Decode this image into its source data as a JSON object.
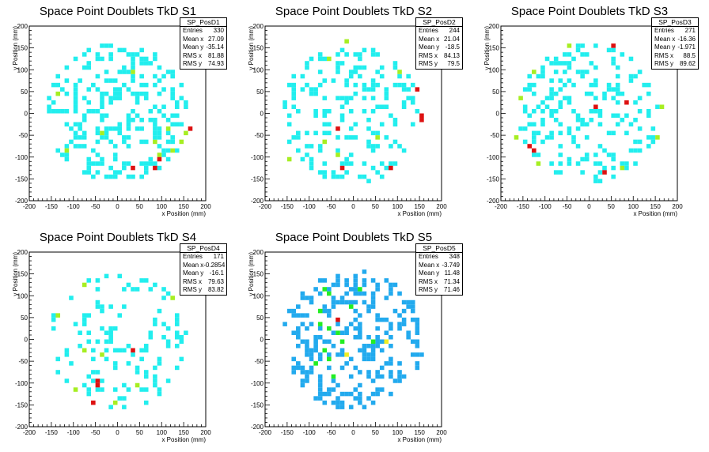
{
  "palette": {
    "cyan": "#22eeee",
    "green": "#a6ee22",
    "red": "#dd1111",
    "blue": "#22aaee",
    "bright_green": "#22ee22",
    "yellow": "#eeee22"
  },
  "chart_data": [
    {
      "type": "heatmap",
      "title": "Space Point Doublets TkD S1",
      "xlabel": "x Position (mm)",
      "ylabel": "y Position (mm)",
      "xlim": [
        -200,
        200
      ],
      "ylim": [
        -200,
        200
      ],
      "xticks": [
        -200,
        -150,
        -100,
        -50,
        0,
        50,
        100,
        150,
        200
      ],
      "yticks": [
        -200,
        -150,
        -100,
        -50,
        0,
        50,
        100,
        150,
        200
      ],
      "stats": {
        "name": "SP_PosD1",
        "entries": "330",
        "mean_x": "27.09",
        "mean_y": "-35.14",
        "rms_x": "81.88",
        "rms_y": "74.93"
      },
      "labels": {
        "entries": "Entries",
        "mean_x": "Mean x",
        "mean_y": "Mean y",
        "rms_x": "RMS x",
        "rms_y": "RMS y"
      },
      "seed": 11,
      "n_points": 330,
      "radius": 160,
      "bias": [
        0.3,
        -0.3
      ],
      "highlights": [
        {
          "x": 160,
          "y": -35,
          "level": "red"
        },
        {
          "x": 30,
          "y": -130,
          "level": "red"
        },
        {
          "x": 80,
          "y": -125,
          "level": "red"
        },
        {
          "x": 95,
          "y": -110,
          "level": "red"
        },
        {
          "x": 155,
          "y": -45,
          "level": "green"
        },
        {
          "x": 140,
          "y": -65,
          "level": "green"
        },
        {
          "x": 110,
          "y": -40,
          "level": "green"
        },
        {
          "x": -40,
          "y": -45,
          "level": "green"
        },
        {
          "x": -120,
          "y": -85,
          "level": "green"
        },
        {
          "x": 80,
          "y": -70,
          "level": "green"
        },
        {
          "x": 35,
          "y": 95,
          "level": "green"
        },
        {
          "x": -140,
          "y": 40,
          "level": "green"
        },
        {
          "x": 90,
          "y": -100,
          "level": "green"
        },
        {
          "x": 120,
          "y": -90,
          "level": "green"
        }
      ]
    },
    {
      "type": "heatmap",
      "title": "Space Point Doublets TkD S2",
      "xlabel": "x Position (mm)",
      "ylabel": "y Position (mm)",
      "xlim": [
        -200,
        200
      ],
      "ylim": [
        -200,
        200
      ],
      "xticks": [
        -200,
        -150,
        -100,
        -50,
        0,
        50,
        100,
        150,
        200
      ],
      "yticks": [
        -200,
        -150,
        -100,
        -50,
        0,
        50,
        100,
        150,
        200
      ],
      "stats": {
        "name": "SP_PosD2",
        "entries": "244",
        "mean_x": "21.04",
        "mean_y": "-18.5",
        "rms_x": "84.13",
        "rms_y": "79.5"
      },
      "labels": {
        "entries": "Entries",
        "mean_x": "Mean x",
        "mean_y": "Mean y",
        "rms_x": "RMS x",
        "rms_y": "RMS y"
      },
      "seed": 23,
      "n_points": 244,
      "radius": 160,
      "bias": [
        0.2,
        -0.1
      ],
      "highlights": [
        {
          "x": 155,
          "y": -5,
          "level": "red"
        },
        {
          "x": 155,
          "y": -15,
          "level": "red"
        },
        {
          "x": 140,
          "y": 55,
          "level": "red"
        },
        {
          "x": -35,
          "y": -35,
          "level": "red"
        },
        {
          "x": -25,
          "y": -130,
          "level": "red"
        },
        {
          "x": 85,
          "y": -130,
          "level": "red"
        },
        {
          "x": -20,
          "y": 160,
          "level": "green"
        },
        {
          "x": -55,
          "y": 120,
          "level": "green"
        },
        {
          "x": 100,
          "y": 90,
          "level": "green"
        },
        {
          "x": -65,
          "y": -65,
          "level": "green"
        },
        {
          "x": -40,
          "y": -95,
          "level": "green"
        },
        {
          "x": -145,
          "y": -105,
          "level": "green"
        },
        {
          "x": 50,
          "y": -55,
          "level": "green"
        }
      ]
    },
    {
      "type": "heatmap",
      "title": "Space Point Doublets TkD S3",
      "xlabel": "x Position (mm)",
      "ylabel": "y Position (mm)",
      "xlim": [
        -200,
        200
      ],
      "ylim": [
        -200,
        200
      ],
      "xticks": [
        -200,
        -150,
        -100,
        -50,
        0,
        50,
        100,
        150,
        200
      ],
      "yticks": [
        -200,
        -150,
        -100,
        -50,
        0,
        50,
        100,
        150,
        200
      ],
      "stats": {
        "name": "SP_PosD3",
        "entries": "271",
        "mean_x": "-16.36",
        "mean_y": "-1.971",
        "rms_x": "88.5",
        "rms_y": "89.62"
      },
      "labels": {
        "entries": "Entries",
        "mean_x": "Mean x",
        "mean_y": "Mean y",
        "rms_x": "RMS x",
        "rms_y": "RMS y"
      },
      "seed": 37,
      "n_points": 271,
      "radius": 160,
      "bias": [
        -0.15,
        0
      ],
      "highlights": [
        {
          "x": 85,
          "y": 25,
          "level": "red"
        },
        {
          "x": 55,
          "y": 150,
          "level": "red"
        },
        {
          "x": -130,
          "y": -85,
          "level": "red"
        },
        {
          "x": -135,
          "y": -80,
          "level": "red"
        },
        {
          "x": 30,
          "y": -140,
          "level": "red"
        },
        {
          "x": 15,
          "y": 10,
          "level": "red"
        },
        {
          "x": -50,
          "y": 150,
          "level": "green"
        },
        {
          "x": -125,
          "y": 90,
          "level": "green"
        },
        {
          "x": -160,
          "y": 35,
          "level": "green"
        },
        {
          "x": -170,
          "y": -60,
          "level": "green"
        },
        {
          "x": 155,
          "y": -55,
          "level": "green"
        },
        {
          "x": 165,
          "y": 15,
          "level": "green"
        },
        {
          "x": -120,
          "y": -120,
          "level": "green"
        },
        {
          "x": 75,
          "y": -125,
          "level": "green"
        }
      ]
    },
    {
      "type": "heatmap",
      "title": "Space Point Doublets TkD S4",
      "xlabel": "x Position (mm)",
      "ylabel": "y Position (mm)",
      "xlim": [
        -200,
        200
      ],
      "ylim": [
        -200,
        200
      ],
      "xticks": [
        -200,
        -150,
        -100,
        -50,
        0,
        50,
        100,
        150,
        200
      ],
      "yticks": [
        -200,
        -150,
        -100,
        -50,
        0,
        50,
        100,
        150,
        200
      ],
      "stats": {
        "name": "SP_PosD4",
        "entries": "171",
        "mean_x": "-0.2854",
        "mean_y": "-16.1",
        "rms_x": "79.63",
        "rms_y": "83.82"
      },
      "labels": {
        "entries": "Entries",
        "mean_x": "Mean x",
        "mean_y": "Mean y",
        "rms_x": "RMS x",
        "rms_y": "RMS y"
      },
      "seed": 51,
      "n_points": 171,
      "radius": 160,
      "bias": [
        0,
        -0.1
      ],
      "highlights": [
        {
          "x": -45,
          "y": -100,
          "level": "red"
        },
        {
          "x": 35,
          "y": -25,
          "level": "red"
        },
        {
          "x": -55,
          "y": -145,
          "level": "red"
        },
        {
          "x": -50,
          "y": -105,
          "level": "red"
        },
        {
          "x": -75,
          "y": 125,
          "level": "green"
        },
        {
          "x": 125,
          "y": 95,
          "level": "green"
        },
        {
          "x": -135,
          "y": 55,
          "level": "green"
        },
        {
          "x": -40,
          "y": -40,
          "level": "green"
        },
        {
          "x": -5,
          "y": -150,
          "level": "green"
        },
        {
          "x": -75,
          "y": -30,
          "level": "green"
        },
        {
          "x": -100,
          "y": -115,
          "level": "green"
        },
        {
          "x": 45,
          "y": -105,
          "level": "green"
        }
      ]
    },
    {
      "type": "heatmap",
      "title": "Space Point Doublets TkD S5",
      "xlabel": "x Position (mm)",
      "ylabel": "y Position (mm)",
      "xlim": [
        -200,
        200
      ],
      "ylim": [
        -200,
        200
      ],
      "xticks": [
        -200,
        -150,
        -100,
        -50,
        0,
        50,
        100,
        150,
        200
      ],
      "yticks": [
        -200,
        -150,
        -100,
        -50,
        0,
        50,
        100,
        150,
        200
      ],
      "stats": {
        "name": "SP_PosD5",
        "entries": "348",
        "mean_x": "-3.749",
        "mean_y": "11.48",
        "rms_x": "71.34",
        "rms_y": "71.46"
      },
      "labels": {
        "entries": "Entries",
        "mean_x": "Mean x",
        "mean_y": "Mean y",
        "rms_x": "RMS x",
        "rms_y": "RMS y"
      },
      "seed": 67,
      "n_points": 348,
      "radius": 160,
      "bias": [
        0,
        0.1
      ],
      "base_level": "blue",
      "highlights": [
        {
          "x": -40,
          "y": 40,
          "level": "red"
        },
        {
          "x": -70,
          "y": -25,
          "level": "bright_green"
        },
        {
          "x": -80,
          "y": 30,
          "level": "bright_green"
        },
        {
          "x": -55,
          "y": 20,
          "level": "bright_green"
        },
        {
          "x": -40,
          "y": 10,
          "level": "bright_green"
        },
        {
          "x": -30,
          "y": -10,
          "level": "bright_green"
        },
        {
          "x": -60,
          "y": -50,
          "level": "bright_green"
        },
        {
          "x": -85,
          "y": -55,
          "level": "bright_green"
        },
        {
          "x": -80,
          "y": 65,
          "level": "bright_green"
        },
        {
          "x": -10,
          "y": 75,
          "level": "bright_green"
        },
        {
          "x": 15,
          "y": 115,
          "level": "bright_green"
        },
        {
          "x": -55,
          "y": 100,
          "level": "bright_green"
        },
        {
          "x": 45,
          "y": -10,
          "level": "bright_green"
        },
        {
          "x": 70,
          "y": -10,
          "level": "yellow"
        },
        {
          "x": -20,
          "y": -40,
          "level": "yellow"
        },
        {
          "x": -45,
          "y": -85,
          "level": "bright_green"
        },
        {
          "x": -70,
          "y": 110,
          "level": "bright_green"
        }
      ]
    }
  ]
}
